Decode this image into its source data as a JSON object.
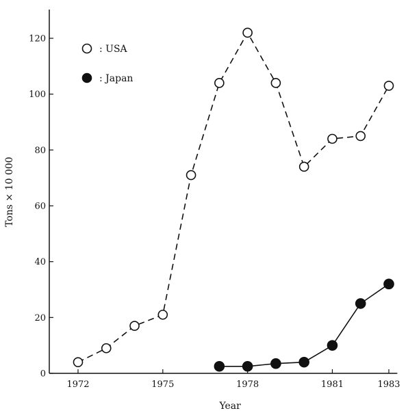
{
  "chart_data": {
    "type": "line",
    "title": "",
    "xlabel": "Year",
    "ylabel": "Tons × 10 000",
    "xlim": [
      1970.6,
      1983.3
    ],
    "ylim": [
      0,
      130
    ],
    "x_ticks": [
      1972,
      1975,
      1978,
      1981,
      1983
    ],
    "y_ticks": [
      0,
      20,
      40,
      60,
      80,
      100,
      120
    ],
    "grid": false,
    "legend_position": "top-left",
    "series": [
      {
        "name": "USA",
        "legend_text": ": USA",
        "marker": "open-circle",
        "line_style": "dashed",
        "x": [
          1972,
          1973,
          1974,
          1975,
          1976,
          1977,
          1978,
          1979,
          1980,
          1981,
          1982,
          1983
        ],
        "y": [
          4,
          9,
          17,
          21,
          71,
          104,
          122,
          104,
          74,
          84,
          85,
          103
        ]
      },
      {
        "name": "Japan",
        "legend_text": ": Japan",
        "marker": "filled-circle",
        "line_style": "solid",
        "x": [
          1977,
          1978,
          1979,
          1980,
          1981,
          1982,
          1983
        ],
        "y": [
          2.5,
          2.5,
          3.5,
          4,
          10,
          25,
          32
        ]
      }
    ]
  }
}
